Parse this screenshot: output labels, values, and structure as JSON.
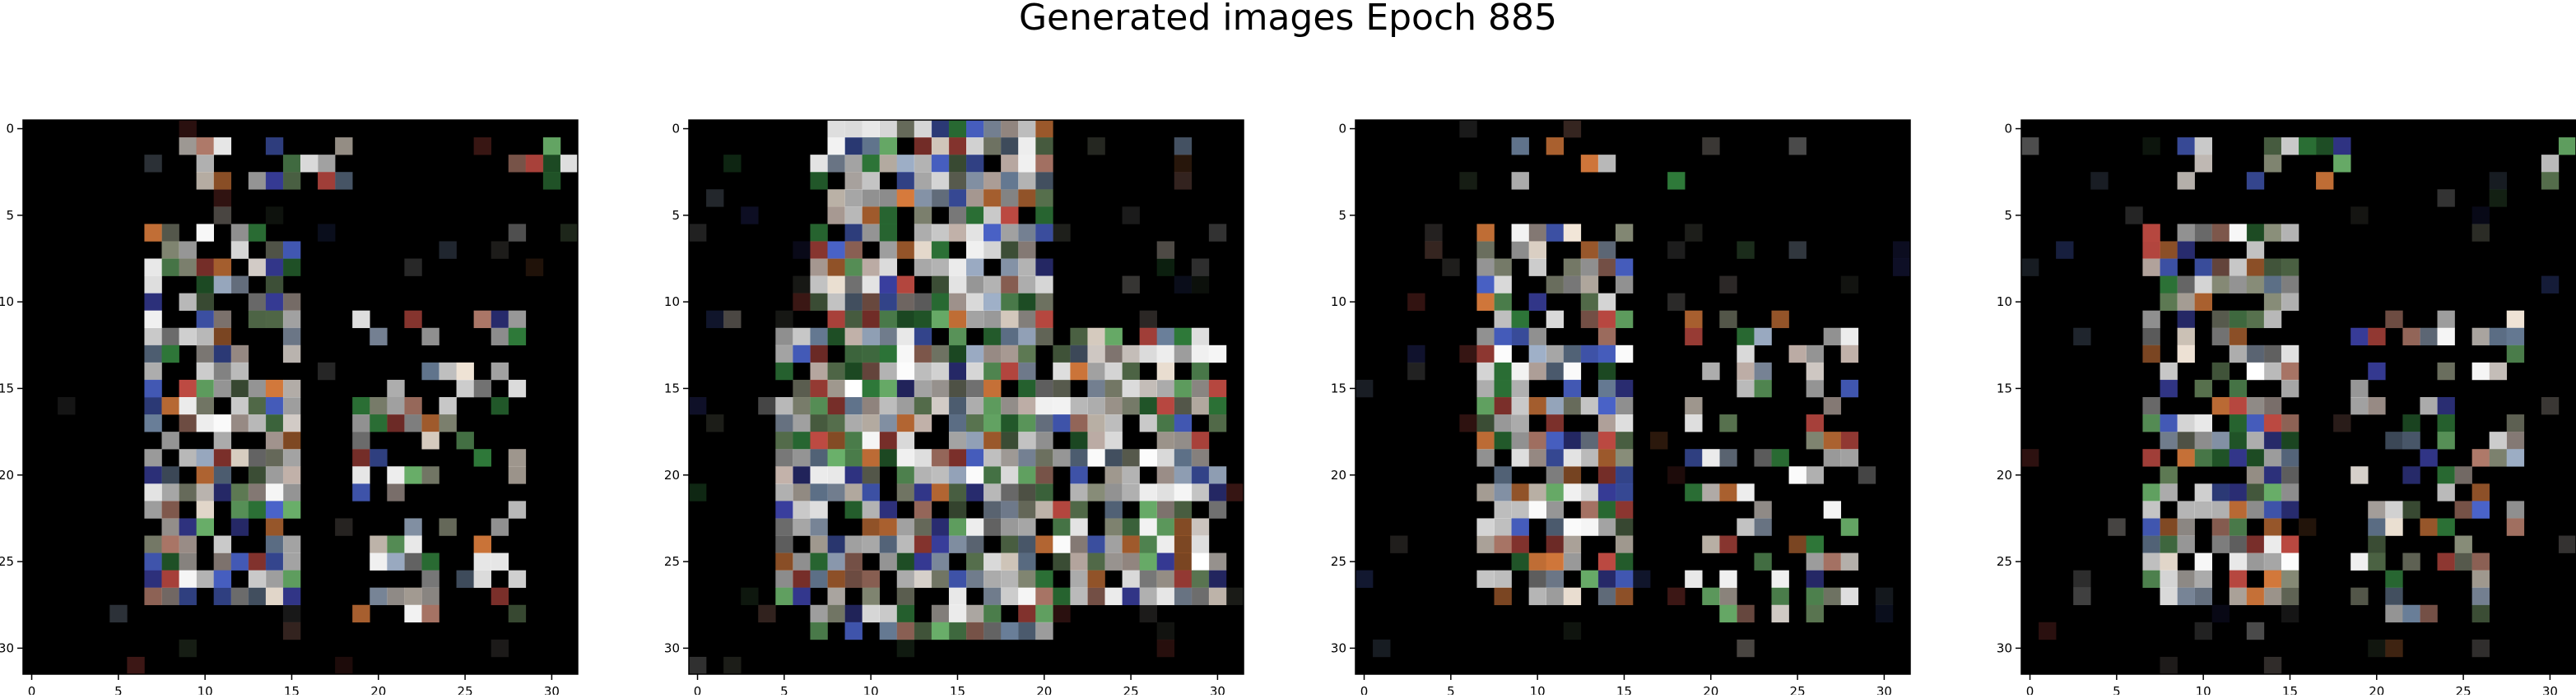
{
  "figure": {
    "title": "Generated images Epoch 885"
  },
  "panels": [
    {
      "id": "sample-1",
      "style": "sparse"
    },
    {
      "id": "sample-2",
      "style": "dense"
    },
    {
      "id": "sample-3",
      "style": "sparse"
    },
    {
      "id": "sample-4",
      "style": "sparse"
    }
  ],
  "axes": {
    "x_ticks": [
      "0",
      "5",
      "10",
      "15",
      "20",
      "25",
      "30"
    ],
    "y_ticks": [
      "0",
      "5",
      "10",
      "15",
      "20",
      "25",
      "30"
    ],
    "tick_values": [
      0,
      5,
      10,
      15,
      20,
      25,
      30
    ],
    "pixel_grid": 32
  },
  "colors": {
    "background": "#000000",
    "palette": [
      "#ffffff",
      "#d9d2cc",
      "#c9b8b0",
      "#9fb0c8",
      "#6a7f9a",
      "#8a8f7a",
      "#5e7a54",
      "#b07a6a",
      "#c14b43",
      "#d67a3c",
      "#4a63c9",
      "#3a3fa0",
      "#6ab06a",
      "#2f7a3a",
      "#a0a0a0",
      "#f2e6d8"
    ]
  }
}
